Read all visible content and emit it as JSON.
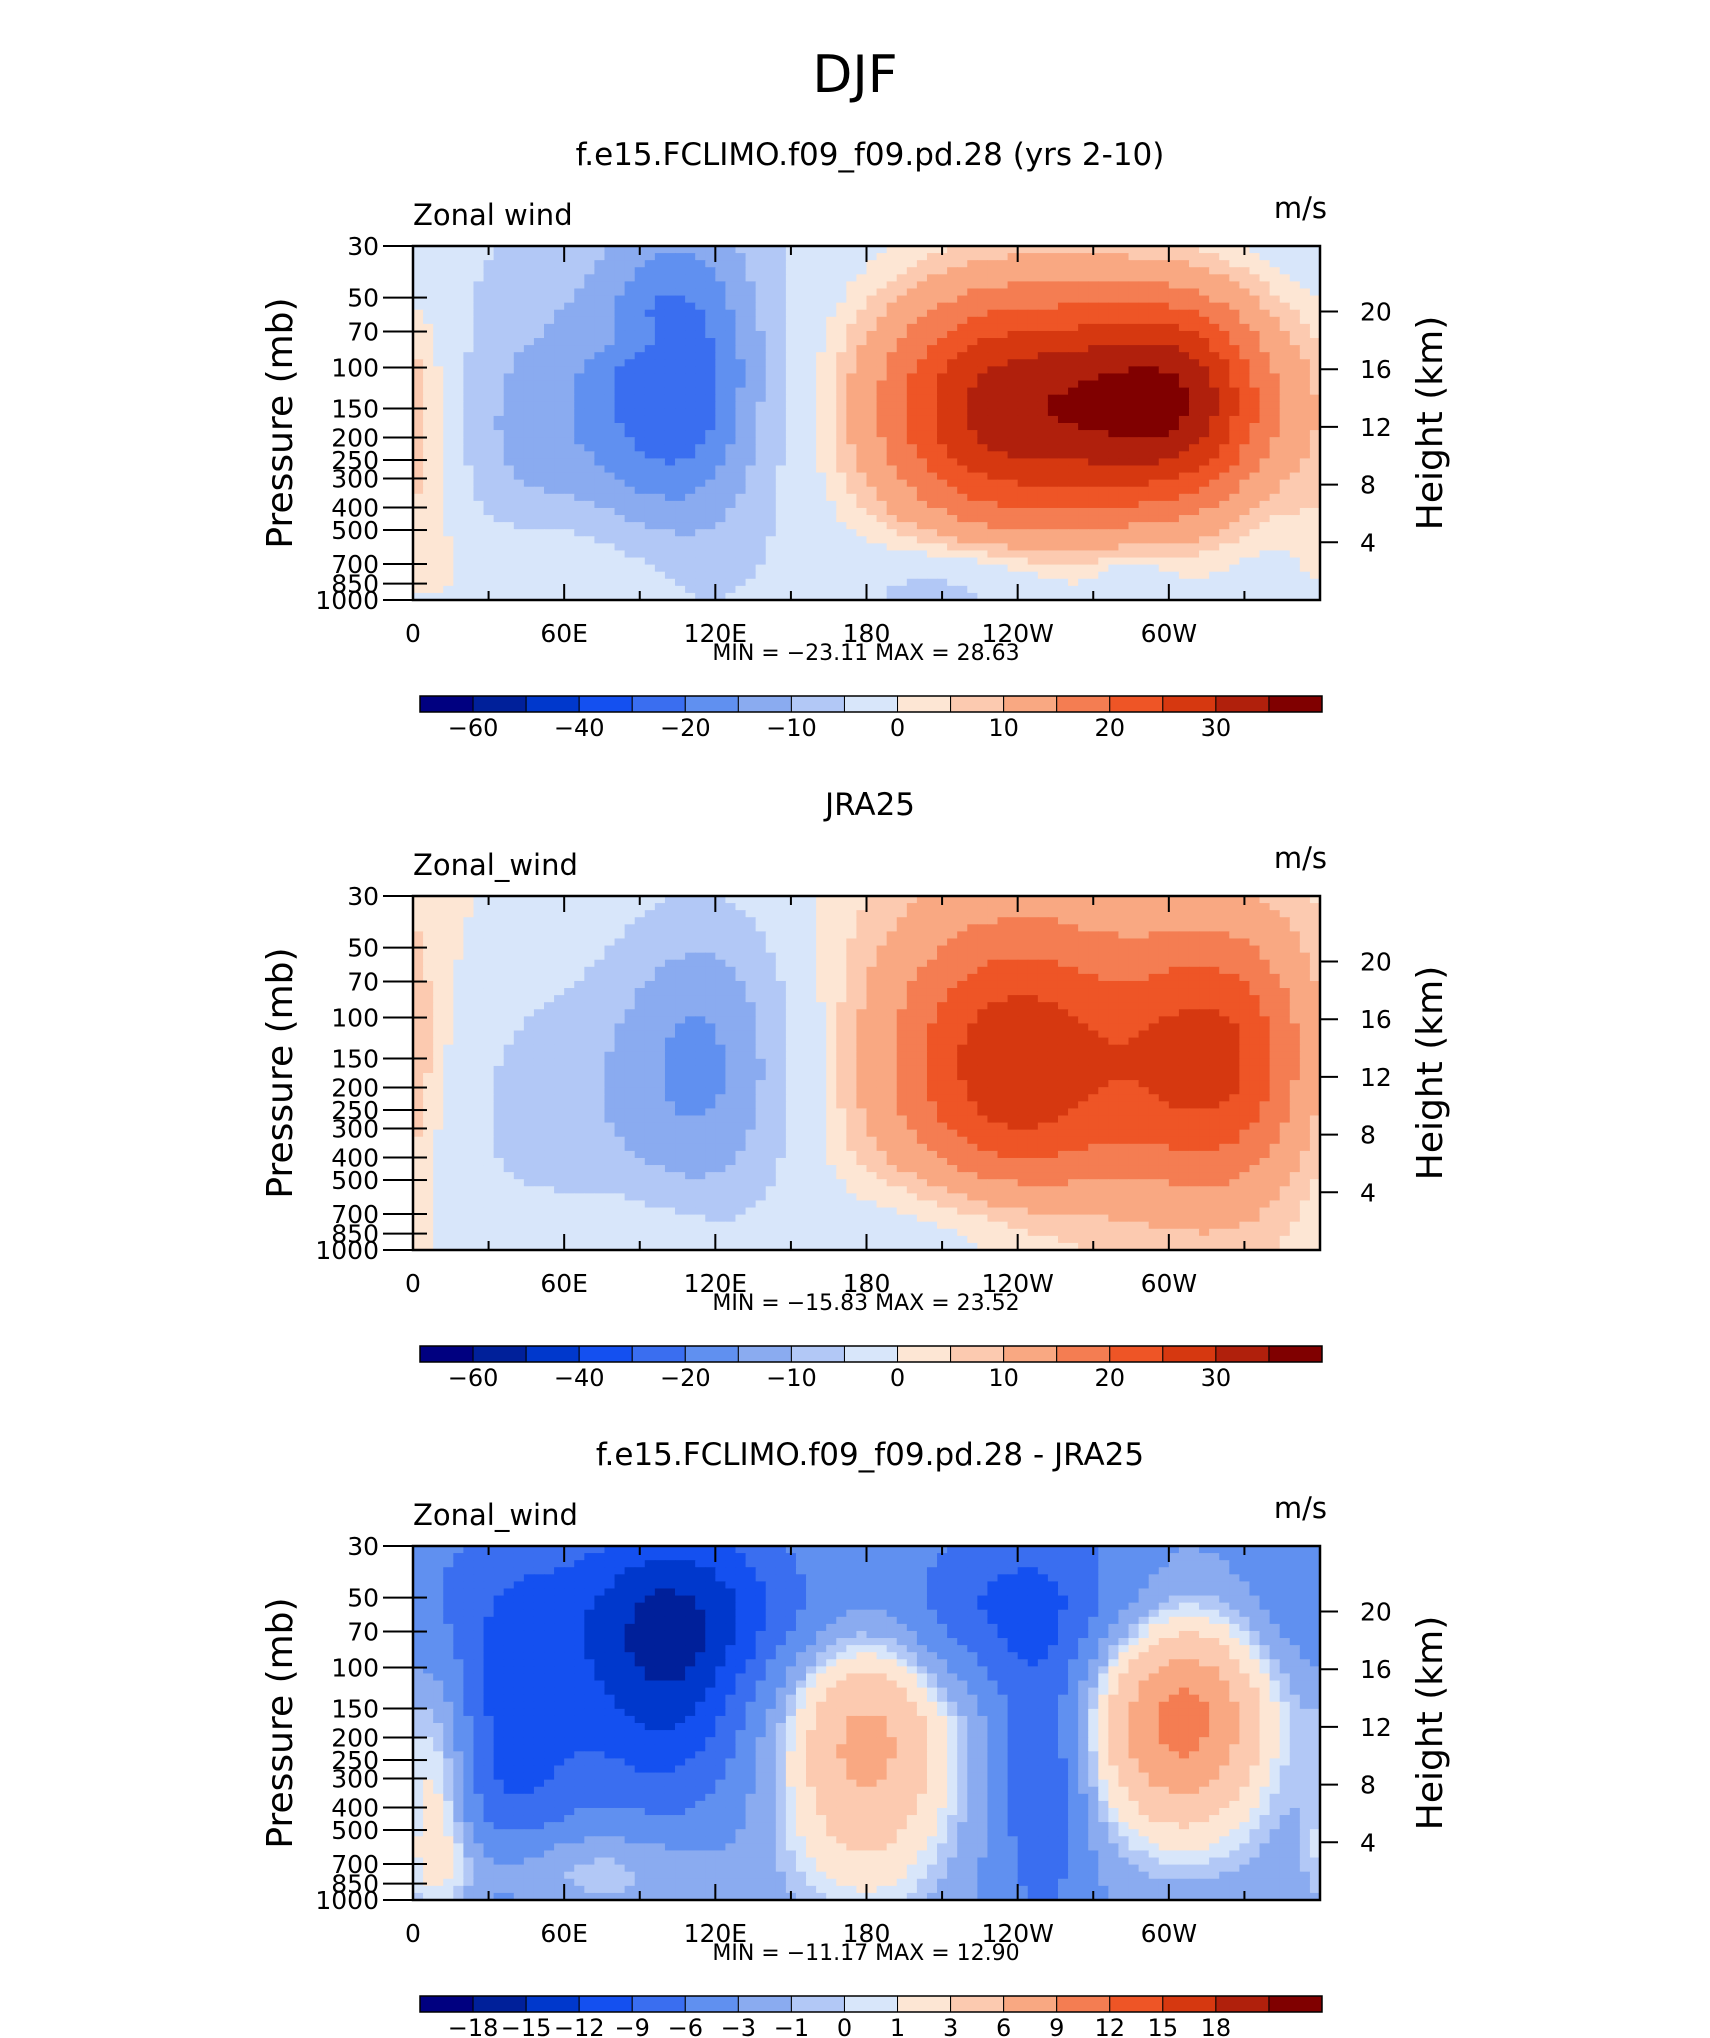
{
  "figure_title": "DJF",
  "chart_data": [
    {
      "type": "heatmap",
      "title": "f.e15.FCLIMO.f09_f09.pd.28 (yrs 2-10)",
      "variable_label": "Zonal wind",
      "units_label": "m/s",
      "ylabel": "Pressure (mb)",
      "ylabel_right": "Height (km)",
      "x_ticks": [
        "0",
        "60E",
        "120E",
        "180",
        "120W",
        "60W"
      ],
      "y_ticks": [
        "30",
        "50",
        "70",
        "100",
        "150",
        "200",
        "250",
        "300",
        "400",
        "500",
        "700",
        "850",
        "1000"
      ],
      "y_ticks_right": [
        "20",
        "16",
        "12",
        "8",
        "4"
      ],
      "stats_text": "MIN = −23.11   MAX =  28.63",
      "min": -23.11,
      "max": 28.63,
      "colorbar_labels": [
        "−60",
        "−40",
        "−20",
        "−10",
        "0",
        "10",
        "20",
        "30"
      ],
      "colorbar_levels": [
        -70,
        -60,
        -50,
        -40,
        -30,
        -20,
        -15,
        -10,
        -5,
        0,
        2.5,
        5,
        10,
        15,
        20,
        25,
        30
      ],
      "field": [
        {
          "lon": 235,
          "plev": 150,
          "value": 28.6,
          "rx": 60,
          "ry": 0.4
        },
        {
          "lon": 305,
          "plev": 140,
          "value": 26,
          "rx": 45,
          "ry": 0.35
        },
        {
          "lon": 105,
          "plev": 110,
          "value": -23.1,
          "rx": 35,
          "ry": 0.45
        },
        {
          "lon": 50,
          "plev": 180,
          "value": -10,
          "rx": 40,
          "ry": 0.4
        },
        {
          "lon": 60,
          "plev": 750,
          "value": 4,
          "rx": 50,
          "ry": 0.2
        },
        {
          "lon": 5,
          "plev": 250,
          "value": 3,
          "rx": 20,
          "ry": 0.5
        },
        {
          "lon": 215,
          "plev": 850,
          "value": -8,
          "rx": 40,
          "ry": 0.12
        },
        {
          "lon": 285,
          "plev": 850,
          "value": -6,
          "rx": 15,
          "ry": 0.1
        },
        {
          "lon": 90,
          "plev": 75,
          "value": 2,
          "rx": 25,
          "ry": 0.06
        }
      ],
      "base_value": -4
    },
    {
      "type": "heatmap",
      "title": "JRA25",
      "variable_label": "Zonal_wind",
      "units_label": "m/s",
      "ylabel": "Pressure (mb)",
      "ylabel_right": "Height (km)",
      "x_ticks": [
        "0",
        "60E",
        "120E",
        "180",
        "120W",
        "60W"
      ],
      "y_ticks": [
        "30",
        "50",
        "70",
        "100",
        "150",
        "200",
        "250",
        "300",
        "400",
        "500",
        "700",
        "850",
        "1000"
      ],
      "y_ticks_right": [
        "20",
        "16",
        "12",
        "8",
        "4"
      ],
      "stats_text": "MIN = −15.83   MAX =  23.52",
      "min": -15.83,
      "max": 23.52,
      "colorbar_labels": [
        "−60",
        "−40",
        "−20",
        "−10",
        "0",
        "10",
        "20",
        "30"
      ],
      "colorbar_levels": [
        -70,
        -60,
        -50,
        -40,
        -30,
        -20,
        -15,
        -10,
        -5,
        0,
        2.5,
        5,
        10,
        15,
        20,
        25,
        30
      ],
      "field": [
        {
          "lon": 240,
          "plev": 160,
          "value": 23.5,
          "rx": 55,
          "ry": 0.45
        },
        {
          "lon": 320,
          "plev": 150,
          "value": 20,
          "rx": 40,
          "ry": 0.4
        },
        {
          "lon": 115,
          "plev": 160,
          "value": -15.8,
          "rx": 40,
          "ry": 0.5
        },
        {
          "lon": 50,
          "plev": 250,
          "value": -7,
          "rx": 50,
          "ry": 0.5
        },
        {
          "lon": 220,
          "plev": 800,
          "value": -6,
          "rx": 60,
          "ry": 0.2
        },
        {
          "lon": 90,
          "plev": 850,
          "value": 4,
          "rx": 40,
          "ry": 0.15
        }
      ],
      "base_value": 1
    },
    {
      "type": "heatmap",
      "title": "f.e15.FCLIMO.f09_f09.pd.28 - JRA25",
      "variable_label": "Zonal_wind",
      "units_label": "m/s",
      "ylabel": "Pressure (mb)",
      "ylabel_right": "Height (km)",
      "x_ticks": [
        "0",
        "60E",
        "120E",
        "180",
        "120W",
        "60W"
      ],
      "y_ticks": [
        "30",
        "50",
        "70",
        "100",
        "150",
        "200",
        "250",
        "300",
        "400",
        "500",
        "700",
        "850",
        "1000"
      ],
      "y_ticks_right": [
        "20",
        "16",
        "12",
        "8",
        "4"
      ],
      "stats_text": "MIN = −11.17   MAX =  12.90",
      "min": -11.17,
      "max": 12.9,
      "colorbar_labels": [
        "−18",
        "−15",
        "−12",
        "−9",
        "−6",
        "−3",
        "−1",
        "0",
        "1",
        "3",
        "6",
        "9",
        "12",
        "15",
        "18"
      ],
      "colorbar_levels": [
        -21,
        -18,
        -15,
        -12,
        -9,
        -6,
        -3,
        -1,
        0,
        1,
        3,
        6,
        9,
        12,
        15,
        18,
        21
      ],
      "field": [
        {
          "lon": 180,
          "plev": 170,
          "value": 9.5,
          "rx": 40,
          "ry": 0.55
        },
        {
          "lon": 305,
          "plev": 150,
          "value": 12.9,
          "rx": 40,
          "ry": 0.4
        },
        {
          "lon": 250,
          "plev": 300,
          "value": -8,
          "rx": 18,
          "ry": 0.4
        },
        {
          "lon": 100,
          "plev": 100,
          "value": -11.2,
          "rx": 35,
          "ry": 0.4
        },
        {
          "lon": 200,
          "plev": 55,
          "value": -9,
          "rx": 160,
          "ry": 0.25
        },
        {
          "lon": 60,
          "plev": 750,
          "value": 3,
          "rx": 60,
          "ry": 0.15
        },
        {
          "lon": 10,
          "plev": 350,
          "value": 4,
          "rx": 15,
          "ry": 0.4
        },
        {
          "lon": 40,
          "plev": 200,
          "value": -8,
          "rx": 30,
          "ry": 0.5
        }
      ],
      "base_value": -4
    }
  ],
  "palette": [
    "#000080",
    "#00209a",
    "#0038cc",
    "#1450f0",
    "#3a6ef0",
    "#6090f0",
    "#8aabf0",
    "#b2c8f6",
    "#d8e6fa",
    "#fde6d4",
    "#fccab0",
    "#f9a882",
    "#f47d52",
    "#ee5526",
    "#d63810",
    "#b0200c",
    "#800000"
  ]
}
